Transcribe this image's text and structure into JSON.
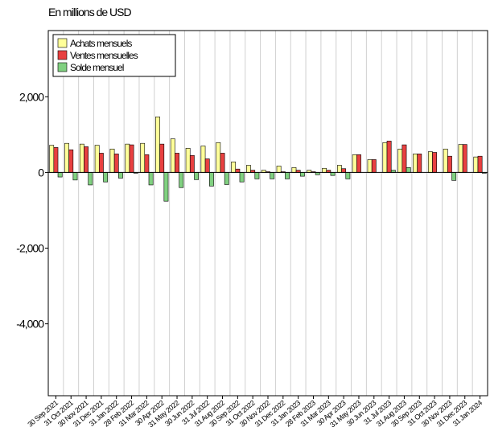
{
  "chart_data": {
    "type": "bar",
    "title": "En millions de USD",
    "categories": [
      "30 Sep 2021",
      "31 Oct 2021",
      "30 Nov 2021",
      "31 Dec 2021",
      "31 Jan 2022",
      "28 Feb 2022",
      "31 Mar 2022",
      "30 Apr 2022",
      "31 May 2022",
      "30 Jun 2022",
      "31 Jul 2022",
      "31 Aug 2022",
      "30 Sep 2022",
      "31 Oct 2022",
      "30 Nov 2022",
      "31 Dec 2022",
      "31 Jan 2023",
      "28 Feb 2023",
      "31 Mar 2023",
      "30 Apr 2023",
      "31 May 2023",
      "30 Jun 2023",
      "31 Jul 2023",
      "31 Aug 2023",
      "30 Sep 2023",
      "31 Oct 2023",
      "30 Nov 2023",
      "31 Dec 2023",
      "31 Jan 2024"
    ],
    "series": [
      {
        "name": "Achats mensuels",
        "color": "#ffff99",
        "values": [
          720,
          770,
          750,
          720,
          620,
          750,
          770,
          1470,
          890,
          640,
          700,
          790,
          280,
          190,
          60,
          170,
          130,
          60,
          110,
          190,
          470,
          340,
          790,
          620,
          490,
          550,
          620,
          740,
          410
        ]
      },
      {
        "name": "Ventes mensuelles",
        "color": "#e84040",
        "values": [
          660,
          600,
          680,
          510,
          490,
          730,
          470,
          750,
          510,
          450,
          360,
          510,
          90,
          60,
          20,
          20,
          60,
          20,
          60,
          100,
          470,
          340,
          830,
          730,
          490,
          530,
          430,
          740,
          430
        ]
      },
      {
        "name": "Solde mensuel",
        "color": "#80d080",
        "values": [
          -120,
          -200,
          -330,
          -250,
          -150,
          -20,
          -330,
          -760,
          -400,
          -190,
          -360,
          -320,
          -250,
          -170,
          -170,
          -170,
          -100,
          -60,
          -80,
          -170,
          0,
          0,
          60,
          130,
          0,
          0,
          -210,
          0,
          -20
        ]
      }
    ],
    "ylim": [
      -5900,
      3750
    ],
    "yticks": [
      {
        "value": -4000,
        "label": "-4,000"
      },
      {
        "value": -2000,
        "label": "-2,000"
      },
      0,
      {
        "value": 2000,
        "label": "2,000"
      }
    ],
    "grid": true,
    "legend": "top-left"
  }
}
